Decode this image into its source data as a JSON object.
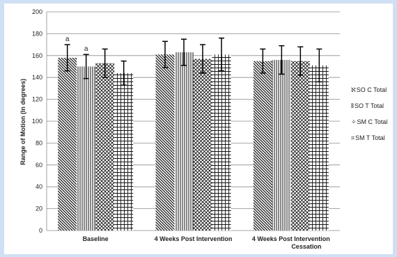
{
  "chart_data": {
    "type": "bar",
    "ylabel": "Range of Motion (In degrees)",
    "ylim": [
      0,
      200
    ],
    "yticks": [
      "0",
      "20",
      "40",
      "60",
      "80",
      "100",
      "120",
      "140",
      "160",
      "180",
      "200"
    ],
    "grid": true,
    "legend_position": "right",
    "categories": [
      [
        "Baseline"
      ],
      [
        "4 Weeks Post Intervention"
      ],
      [
        "4 Weeks Post Intervention",
        "Cessation"
      ]
    ],
    "series": [
      {
        "name": "SO C Total",
        "legend_symbol": "ℵ",
        "pattern": "diagonal",
        "values": [
          158,
          161,
          155
        ],
        "errors": [
          12,
          12,
          11
        ]
      },
      {
        "name": "SO T Total",
        "legend_symbol": "⦀",
        "pattern": "vertical",
        "values": [
          150,
          163,
          156
        ],
        "errors": [
          11,
          12,
          13
        ]
      },
      {
        "name": "SM C Total",
        "legend_symbol": "✧",
        "pattern": "crosshatch",
        "values": [
          153,
          157,
          155
        ],
        "errors": [
          13,
          13,
          13
        ]
      },
      {
        "name": "SM T Total",
        "legend_symbol": "⌗",
        "pattern": "grid",
        "values": [
          144,
          161,
          151
        ],
        "errors": [
          11,
          15,
          15
        ]
      }
    ],
    "annotations": [
      {
        "text": "a",
        "category": 0,
        "series": 0
      },
      {
        "text": "a",
        "category": 0,
        "series": 1
      }
    ]
  }
}
